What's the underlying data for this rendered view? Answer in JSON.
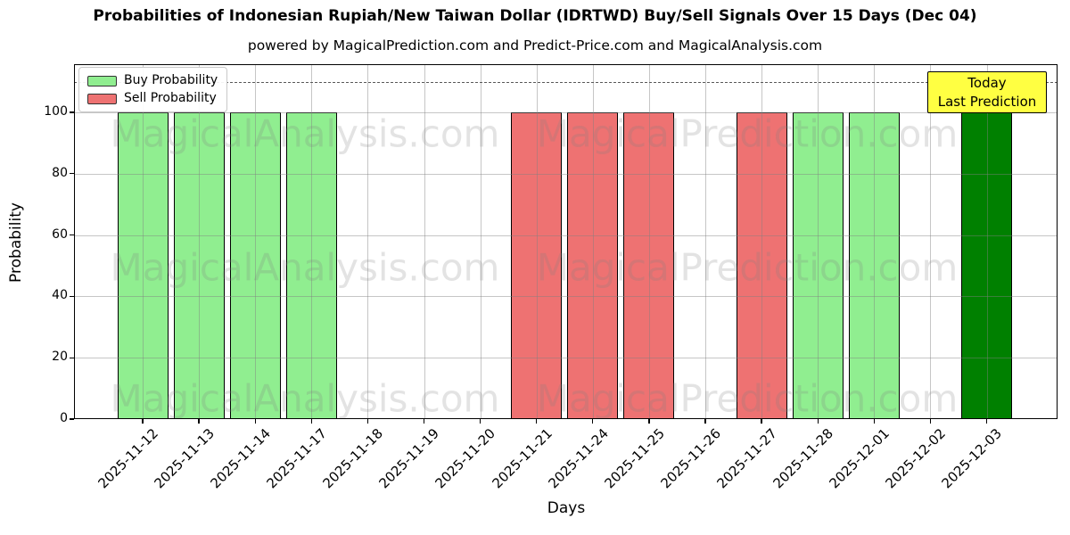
{
  "header": {
    "title": "Probabilities of Indonesian Rupiah/New Taiwan Dollar (IDRTWD) Buy/Sell Signals Over 15 Days (Dec 04)",
    "subtitle": "powered by MagicalPrediction.com and Predict-Price.com and MagicalAnalysis.com"
  },
  "legend": {
    "position": "upper left",
    "items": [
      {
        "label": "Buy Probability",
        "color": "#90ee90"
      },
      {
        "label": "Sell Probability",
        "color": "#ee7272"
      }
    ]
  },
  "annotation_box": {
    "line1": "Today",
    "line2": "Last Prediction",
    "bg_color": "#ffff42",
    "border_color": "#000000"
  },
  "watermarks": {
    "left_text": "MagicalAnalysis.com",
    "right_text": "MagicalPrediction.com"
  },
  "chart_data": {
    "type": "bar",
    "title": "Probabilities of Indonesian Rupiah/New Taiwan Dollar (IDRTWD) Buy/Sell Signals Over 15 Days (Dec 04)",
    "xlabel": "Days",
    "ylabel": "Probability",
    "ylim": [
      0,
      116
    ],
    "yticks": [
      0,
      20,
      40,
      60,
      80,
      100
    ],
    "grid": true,
    "dashed_threshold_y": 110,
    "categories": [
      "2025-11-12",
      "2025-11-13",
      "2025-11-14",
      "2025-11-17",
      "2025-11-18",
      "2025-11-19",
      "2025-11-20",
      "2025-11-21",
      "2025-11-24",
      "2025-11-25",
      "2025-11-26",
      "2025-11-27",
      "2025-11-28",
      "2025-12-01",
      "2025-12-02",
      "2025-12-03"
    ],
    "series": [
      {
        "name": "Buy Probability",
        "color": "#90ee90",
        "values": [
          100,
          100,
          100,
          100,
          0,
          0,
          0,
          0,
          0,
          0,
          0,
          0,
          100,
          100,
          0,
          0
        ]
      },
      {
        "name": "Sell Probability",
        "color": "#ee7272",
        "values": [
          0,
          0,
          0,
          0,
          0,
          0,
          0,
          100,
          100,
          100,
          0,
          100,
          0,
          0,
          0,
          0
        ]
      },
      {
        "name": "Today / Last Prediction",
        "color": "#008000",
        "values": [
          0,
          0,
          0,
          0,
          0,
          0,
          0,
          0,
          0,
          0,
          0,
          0,
          0,
          0,
          0,
          100
        ]
      }
    ]
  }
}
